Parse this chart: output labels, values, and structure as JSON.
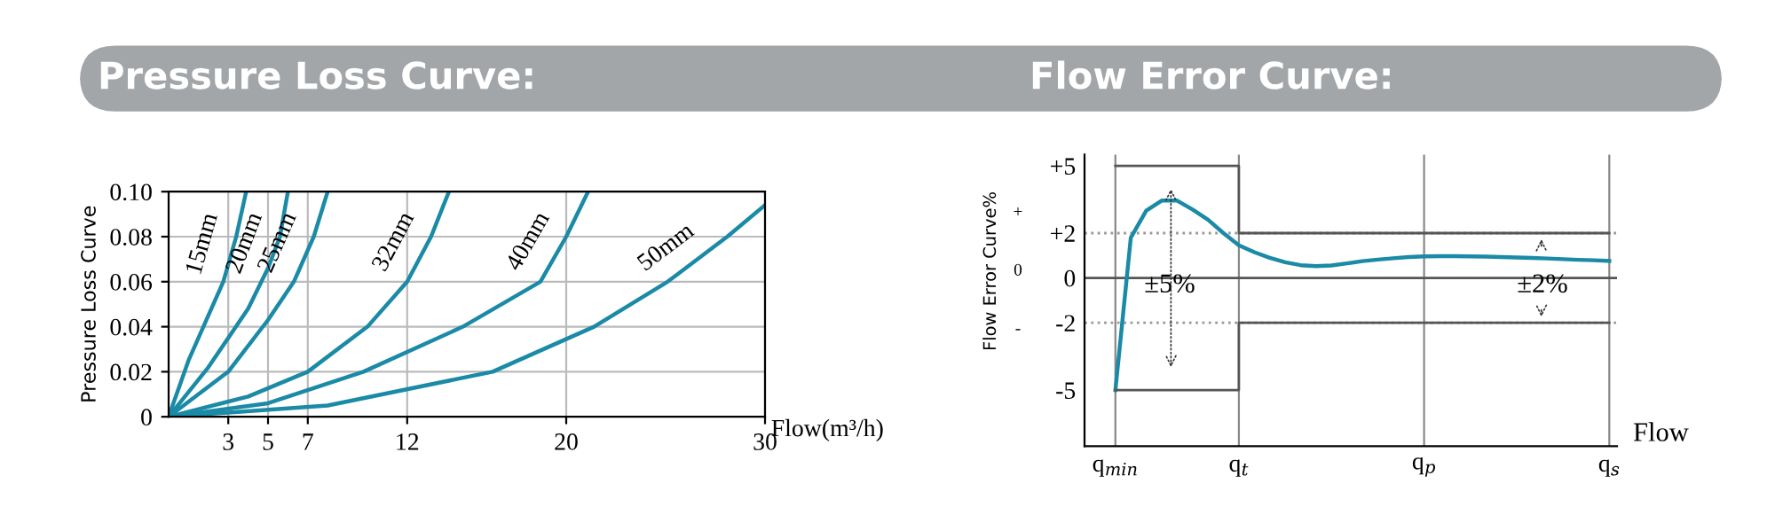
{
  "chart_data": [
    {
      "type": "line",
      "title": "Pressure Loss Curve:",
      "xlabel": "Flow(m³/h)",
      "ylabel": "Pressure Loss Curve",
      "xlim": [
        0,
        30
      ],
      "xticks": [
        3,
        5,
        7,
        12,
        20,
        30
      ],
      "ylim": [
        0,
        0.1
      ],
      "yticks": [
        0,
        0.02,
        0.04,
        0.06,
        0.08,
        {
          "value": 0.1,
          "label": "0.10"
        }
      ],
      "grid": true,
      "marker": "none",
      "line_style": "solid",
      "series": [
        {
          "name": "15mm",
          "color": "#1a8aa6",
          "x": [
            0,
            1,
            2,
            2.75,
            3.4,
            3.9
          ],
          "values": [
            0,
            0.025,
            0.045,
            0.06,
            0.08,
            0.1
          ]
        },
        {
          "name": "20mm",
          "color": "#1a8aa6",
          "x": [
            0,
            2,
            4,
            5,
            5.6,
            6.0
          ],
          "values": [
            0,
            0.022,
            0.048,
            0.066,
            0.08,
            0.1
          ]
        },
        {
          "name": "25mm",
          "color": "#1a8aa6",
          "x": [
            0,
            3,
            5,
            6.3,
            7.3,
            8.0
          ],
          "values": [
            0,
            0.02,
            0.043,
            0.06,
            0.08,
            0.1
          ]
        },
        {
          "name": "32mm",
          "color": "#1a8aa6",
          "x": [
            0,
            4,
            7,
            10,
            12,
            13.2,
            14.1
          ],
          "values": [
            0,
            0.009,
            0.02,
            0.04,
            0.06,
            0.08,
            0.1
          ]
        },
        {
          "name": "40mm",
          "color": "#1a8aa6",
          "x": [
            0,
            5,
            9.8,
            14.8,
            18.7,
            20.0,
            21.1
          ],
          "values": [
            0,
            0.006,
            0.02,
            0.04,
            0.06,
            0.08,
            0.1
          ]
        },
        {
          "name": "50mm",
          "color": "#1a8aa6",
          "x": [
            0,
            8,
            16.3,
            21.4,
            25.1,
            28.1,
            30
          ],
          "values": [
            0,
            0.005,
            0.02,
            0.04,
            0.06,
            0.08,
            0.094
          ]
        }
      ]
    },
    {
      "type": "line",
      "title": "Flow Error Curve:",
      "xlabel": "Flow",
      "ylabel": "Flow Error Curve%",
      "categories": [
        "q$_{min}$",
        null,
        null,
        null,
        null,
        null,
        null,
        null,
        "q$_{t}$",
        null,
        null,
        null,
        null,
        null,
        null,
        null,
        null,
        null,
        null,
        null,
        "q$_{p}$",
        null,
        null,
        null,
        null,
        null,
        null,
        null,
        null,
        null,
        null,
        null,
        "q$_{s}$"
      ],
      "ylim": [
        -7.5,
        5.5
      ],
      "yticks": [
        {
          "value": 5,
          "label": "+5"
        },
        {
          "value": 2,
          "label": "+2"
        },
        0,
        {
          "value": -2,
          "label": "-2"
        },
        {
          "value": -5,
          "label": "-5"
        }
      ],
      "grid": "x",
      "marker": "none",
      "ref_lines": [
        {
          "axis": "y",
          "value": 0,
          "color": "#555555",
          "line_style": "solid"
        },
        {
          "axis": "y",
          "value": 2,
          "color": "#999999",
          "line_style": "dotted"
        },
        {
          "axis": "y",
          "value": -2,
          "color": "#999999",
          "line_style": "dotted"
        }
      ],
      "annotations": [
        "±5%",
        "±2%",
        "+",
        "0",
        "-"
      ],
      "series": [
        {
          "color": "#1a8aa6",
          "values": [
            -5,
            1.8,
            3.0,
            3.45,
            3.45,
            3.05,
            2.6,
            2.0,
            1.46,
            1.15,
            0.9,
            0.7,
            0.57,
            0.53,
            0.56,
            0.65,
            0.75,
            0.82,
            0.88,
            0.93,
            0.96,
            0.97,
            0.97,
            0.96,
            0.95,
            0.93,
            0.91,
            0.89,
            0.87,
            0.84,
            0.81,
            0.79,
            0.76
          ]
        },
        {
          "type": "step",
          "color": "#555555",
          "values": [
            5,
            5,
            5,
            5,
            5,
            5,
            5,
            5,
            2,
            2,
            2,
            2,
            2,
            2,
            2,
            2,
            2,
            2,
            2,
            2,
            2,
            2,
            2,
            2,
            2,
            2,
            2,
            2,
            2,
            2,
            2,
            2,
            2
          ]
        },
        {
          "type": "step",
          "color": "#555555",
          "values": [
            -5,
            -5,
            -5,
            -5,
            -5,
            -5,
            -5,
            -5,
            -2,
            -2,
            -2,
            -2,
            -2,
            -2,
            -2,
            -2,
            -2,
            -2,
            -2,
            -2,
            -2,
            -2,
            -2,
            -2,
            -2,
            -2,
            -2,
            -2,
            -2,
            -2,
            -2,
            -2,
            -2
          ]
        }
      ]
    }
  ]
}
